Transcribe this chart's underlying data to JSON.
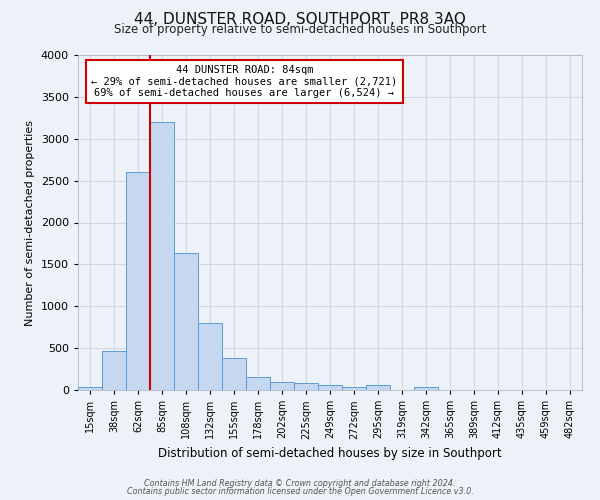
{
  "title": "44, DUNSTER ROAD, SOUTHPORT, PR8 3AQ",
  "subtitle": "Size of property relative to semi-detached houses in Southport",
  "xlabel": "Distribution of semi-detached houses by size in Southport",
  "ylabel": "Number of semi-detached properties",
  "bar_labels": [
    "15sqm",
    "38sqm",
    "62sqm",
    "85sqm",
    "108sqm",
    "132sqm",
    "155sqm",
    "178sqm",
    "202sqm",
    "225sqm",
    "249sqm",
    "272sqm",
    "295sqm",
    "319sqm",
    "342sqm",
    "365sqm",
    "389sqm",
    "412sqm",
    "435sqm",
    "459sqm",
    "482sqm"
  ],
  "bar_values": [
    30,
    460,
    2600,
    3200,
    1640,
    800,
    380,
    155,
    90,
    85,
    55,
    40,
    55,
    5,
    30,
    5,
    5,
    5,
    5,
    5,
    5
  ],
  "bar_color": "#c5d8f0",
  "bar_edge_color": "#5b9bd5",
  "bar_width": 1.0,
  "property_line_color": "#cc0000",
  "ylim": [
    0,
    4000
  ],
  "yticks": [
    0,
    500,
    1000,
    1500,
    2000,
    2500,
    3000,
    3500,
    4000
  ],
  "annotation_title": "44 DUNSTER ROAD: 84sqm",
  "annotation_line1": "← 29% of semi-detached houses are smaller (2,721)",
  "annotation_line2": "69% of semi-detached houses are larger (6,524) →",
  "annotation_box_facecolor": "#ffffff",
  "annotation_box_edgecolor": "#cc0000",
  "grid_color": "#d0d8e8",
  "bg_color": "#edf2f9",
  "footnote1": "Contains HM Land Registry data © Crown copyright and database right 2024.",
  "footnote2": "Contains public sector information licensed under the Open Government Licence v3.0.",
  "red_line_index": 3
}
